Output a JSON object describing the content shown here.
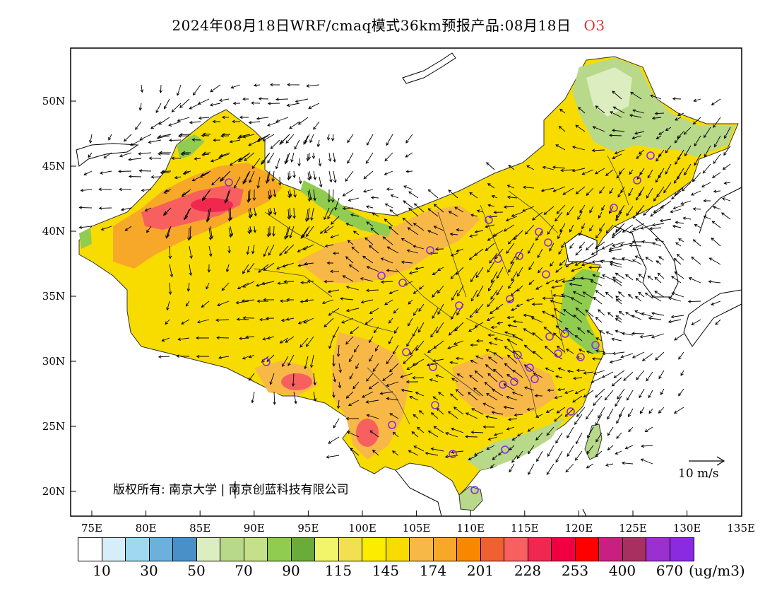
{
  "title": {
    "main": "2024年08月18日WRF/cmaq模式36km预报产品:08月18日",
    "pollutant": "O3"
  },
  "map": {
    "y_ticks": [
      "50N",
      "45N",
      "40N",
      "35N",
      "30N",
      "25N",
      "20N"
    ],
    "x_ticks": [
      "75E",
      "80E",
      "85E",
      "90E",
      "95E",
      "100E",
      "105E",
      "110E",
      "115E",
      "120E",
      "125E",
      "130E",
      "135E"
    ],
    "wind_scale_label": "10 m/s",
    "copyright": "版权所有: 南京大学 | 南京创蓝科技有限公司",
    "city_markers": 34
  },
  "colorbar": {
    "colors": [
      "#ffffff",
      "#d6eefa",
      "#a0d8f2",
      "#6cb0dc",
      "#4a90c8",
      "#dcedc0",
      "#b8d88a",
      "#c4e08a",
      "#90cc50",
      "#6aac3a",
      "#f2f46a",
      "#f2e050",
      "#fcec00",
      "#f8dc00",
      "#f8b848",
      "#f8a828",
      "#f88800",
      "#f06030",
      "#f86060",
      "#f02850",
      "#f00040",
      "#ff0000",
      "#c82080",
      "#a83060",
      "#9b30d0",
      "#8a2be2"
    ],
    "labels": [
      "10",
      "30",
      "50",
      "70",
      "90",
      "115",
      "145",
      "174",
      "201",
      "228",
      "253",
      "400",
      "670"
    ],
    "units": "(ug/m3)"
  }
}
